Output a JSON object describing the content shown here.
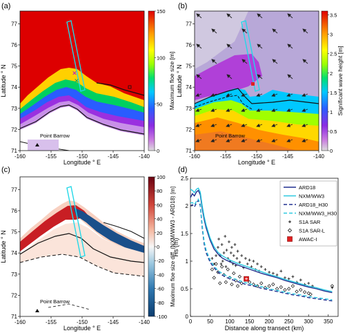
{
  "chart_data": [
    {
      "panel": "(a)",
      "type": "heatmap",
      "xlabel": "Longitude ° E",
      "ylabel": "Latitude ° N",
      "xlim": [
        -160,
        -140
      ],
      "ylim": [
        71,
        77.6
      ],
      "xticks": [
        "-160",
        "-155",
        "-150",
        "-145",
        "-140"
      ],
      "yticks": [
        "71",
        "72",
        "73",
        "74",
        "75",
        "76",
        "77"
      ],
      "colorbar": {
        "label": "Maximum floe size [m]",
        "ticks": [
          "0",
          "50",
          "100",
          "150"
        ],
        "range": [
          0,
          150
        ]
      },
      "annotation": "Point Barrow"
    },
    {
      "panel": "(b)",
      "type": "heatmap",
      "xlabel": "Longitude ° E",
      "ylabel": "Latitude ° N",
      "xlim": [
        -160,
        -140
      ],
      "ylim": [
        71,
        77.6
      ],
      "xticks": [
        "-160",
        "-155",
        "-150",
        "-145",
        "-140"
      ],
      "yticks": [
        "71",
        "72",
        "73",
        "74",
        "75",
        "76",
        "77"
      ],
      "colorbar": {
        "label": "Significant wave height [m]",
        "ticks": [
          "0",
          "0.5",
          "1",
          "1.5",
          "2",
          "2.5",
          "3",
          "3.5"
        ],
        "range": [
          0,
          3.6
        ]
      },
      "annotation": "Point Barrow"
    },
    {
      "panel": "(c)",
      "type": "heatmap",
      "xlabel": "Longitude ° E",
      "ylabel": "Latitude ° N",
      "xlim": [
        -160,
        -140
      ],
      "ylim": [
        71,
        77.6
      ],
      "xticks": [
        "-160",
        "-155",
        "-150",
        "-145",
        "-140"
      ],
      "yticks": [
        "71",
        "72",
        "73",
        "74",
        "75",
        "76",
        "77"
      ],
      "colorbar": {
        "label": "Maximum floe size diff. (NXM/WW3 - ARD18) [m]",
        "ticks": [
          "-100",
          "-80",
          "-60",
          "-40",
          "-20",
          "0",
          "20",
          "40",
          "60",
          "80",
          "100"
        ],
        "range": [
          -100,
          100
        ]
      },
      "annotation": "Point Barrow"
    },
    {
      "panel": "(d)",
      "type": "line",
      "xlabel": "Distance along transect (km)",
      "ylabel": "Hs (m)",
      "xlim": [
        0,
        375
      ],
      "ylim": [
        0,
        2.5
      ],
      "xticks": [
        "0",
        "50",
        "100",
        "150",
        "200",
        "250",
        "300",
        "350"
      ],
      "yticks": [
        "0",
        "0.5",
        "1",
        "1.5",
        "2",
        "2.5"
      ],
      "legend": "top-right",
      "series": [
        {
          "name": "ARD18",
          "style": "solid",
          "color": "#1f2f8f",
          "x": [
            0,
            5,
            10,
            15,
            20,
            25,
            30,
            35,
            40,
            50,
            60,
            70,
            80,
            90,
            100,
            120,
            140,
            160,
            180,
            200,
            220,
            240,
            260,
            280,
            300,
            320,
            340,
            360
          ],
          "y": [
            2.15,
            2.22,
            2.18,
            2.25,
            2.28,
            2.2,
            1.95,
            1.75,
            1.6,
            1.38,
            1.22,
            1.13,
            1.06,
            1.02,
            0.99,
            0.93,
            0.88,
            0.83,
            0.78,
            0.74,
            0.7,
            0.65,
            0.61,
            0.57,
            0.53,
            0.5,
            0.46,
            0.43
          ]
        },
        {
          "name": "NXM/WW3",
          "style": "solid",
          "color": "#2ac8e0",
          "x": [
            0,
            5,
            10,
            15,
            20,
            25,
            30,
            35,
            40,
            50,
            60,
            70,
            80,
            90,
            100,
            120,
            140,
            160,
            180,
            200,
            220,
            240,
            260,
            280,
            300,
            320,
            340,
            360
          ],
          "y": [
            2.3,
            2.28,
            2.24,
            2.3,
            2.32,
            2.25,
            2.0,
            1.8,
            1.65,
            1.42,
            1.26,
            1.16,
            1.1,
            1.06,
            1.02,
            0.96,
            0.91,
            0.86,
            0.81,
            0.76,
            0.72,
            0.67,
            0.63,
            0.59,
            0.55,
            0.52,
            0.48,
            0.45
          ]
        },
        {
          "name": "ARD18_H30",
          "style": "dashed",
          "color": "#1f2f8f",
          "x": [
            0,
            5,
            10,
            15,
            20,
            25,
            30,
            35,
            40,
            50,
            60,
            70,
            80,
            90,
            100,
            120,
            140,
            160,
            180,
            200,
            220,
            240,
            260,
            280,
            300,
            320,
            340,
            360
          ],
          "y": [
            2.0,
            2.02,
            1.98,
            2.05,
            2.1,
            2.0,
            1.6,
            1.3,
            1.15,
            0.98,
            0.88,
            0.8,
            0.75,
            0.71,
            0.68,
            0.63,
            0.58,
            0.55,
            0.51,
            0.48,
            0.45,
            0.42,
            0.39,
            0.37,
            0.34,
            0.32,
            0.3,
            0.28
          ]
        },
        {
          "name": "NXM/WW3_H30",
          "style": "dashed",
          "color": "#2ac8e0",
          "x": [
            0,
            5,
            10,
            15,
            20,
            25,
            30,
            35,
            40,
            50,
            60,
            70,
            80,
            90,
            100,
            120,
            140,
            160,
            180,
            200,
            220,
            240,
            260,
            280,
            300,
            320,
            340,
            360
          ],
          "y": [
            2.05,
            2.06,
            2.02,
            2.08,
            2.12,
            2.03,
            1.65,
            1.35,
            1.2,
            1.02,
            0.91,
            0.83,
            0.78,
            0.74,
            0.71,
            0.66,
            0.61,
            0.57,
            0.54,
            0.5,
            0.47,
            0.44,
            0.41,
            0.39,
            0.36,
            0.34,
            0.32,
            0.3
          ]
        },
        {
          "name": "S1A SAR",
          "style": "marker-plus",
          "color": "#111111",
          "x": [
            55,
            60,
            65,
            70,
            72,
            75,
            78,
            80,
            82,
            85,
            88,
            90,
            92,
            95,
            98,
            100,
            103,
            105,
            108,
            110,
            113,
            115,
            118,
            120,
            125,
            130,
            135,
            140,
            145,
            150,
            155,
            160,
            165,
            170,
            175,
            180,
            190,
            200,
            210,
            220,
            230,
            240,
            250,
            260,
            270,
            280,
            290,
            300,
            310,
            360
          ],
          "y": [
            1.05,
            0.95,
            1.1,
            1.25,
            1.4,
            1.1,
            0.95,
            1.3,
            1.0,
            1.15,
            1.45,
            0.9,
            1.2,
            1.05,
            1.35,
            1.0,
            1.15,
            1.25,
            0.95,
            1.1,
            1.3,
            0.92,
            1.05,
            1.18,
            0.98,
            1.1,
            0.88,
            1.05,
            0.95,
            1.02,
            0.9,
            1.0,
            0.85,
            0.95,
            0.82,
            0.9,
            0.85,
            0.8,
            0.78,
            0.75,
            0.82,
            0.7,
            0.68,
            0.72,
            0.62,
            0.66,
            0.58,
            0.6,
            0.55,
            0.52
          ]
        },
        {
          "name": "S1A SAR-L",
          "style": "marker-diamond",
          "color": "#111111",
          "x": [
            55,
            60,
            65,
            70,
            75,
            80,
            85,
            90,
            95,
            100,
            105,
            110,
            115,
            120,
            125,
            130,
            140,
            150,
            160,
            170,
            180,
            190,
            200,
            210,
            220,
            230,
            240,
            250,
            260,
            270,
            280,
            290,
            300,
            305,
            360
          ],
          "y": [
            0.85,
            0.7,
            0.95,
            0.8,
            0.6,
            0.9,
            0.75,
            0.62,
            0.85,
            0.7,
            0.58,
            0.78,
            0.65,
            0.55,
            0.72,
            0.6,
            0.68,
            0.62,
            0.58,
            0.55,
            0.6,
            0.52,
            0.55,
            0.58,
            0.5,
            0.53,
            0.48,
            0.5,
            0.55,
            0.45,
            0.48,
            0.44,
            0.42,
            0.4,
            0.55
          ]
        },
        {
          "name": "AWAC-I",
          "style": "marker-square",
          "color": "#e02020",
          "x": [
            142
          ],
          "y": [
            0.68
          ]
        }
      ]
    }
  ],
  "colors": {
    "transect": "#22d8e8",
    "land": "#ffffff",
    "ice_edge": "#000000"
  }
}
